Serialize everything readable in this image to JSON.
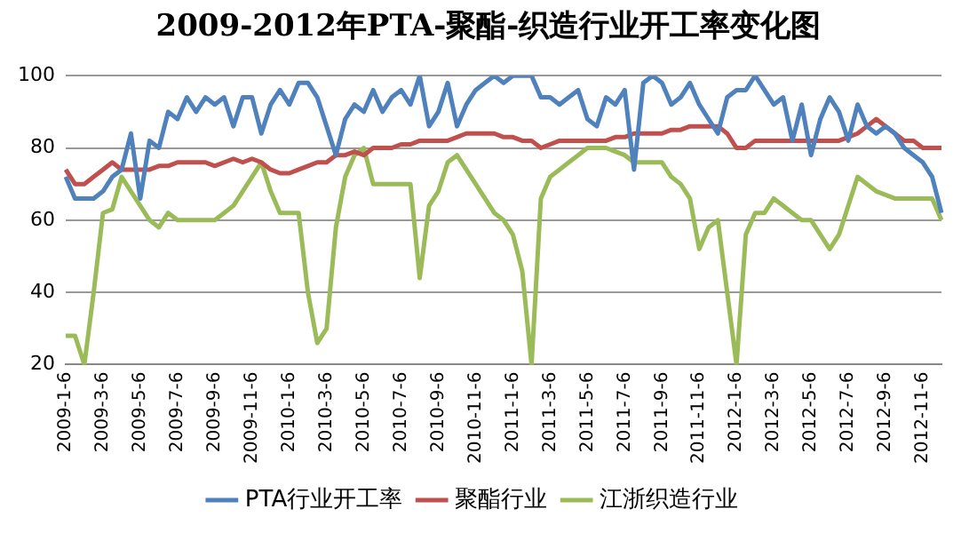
{
  "chart_data": {
    "type": "line",
    "title": "2009-2012年PTA-聚酯-织造行业开工率变化图",
    "categories": [
      "2009-1-6",
      null,
      null,
      null,
      "2009-3-6",
      null,
      null,
      null,
      "2009-5-6",
      null,
      null,
      null,
      "2009-7-6",
      null,
      null,
      null,
      "2009-9-6",
      null,
      null,
      null,
      "2009-11-6",
      null,
      null,
      null,
      "2010-1-6",
      null,
      null,
      null,
      "2010-3-6",
      null,
      null,
      null,
      "2010-5-6",
      null,
      null,
      null,
      "2010-7-6",
      null,
      null,
      null,
      "2010-9-6",
      null,
      null,
      null,
      "2010-11-6",
      null,
      null,
      null,
      "2011-1-6",
      null,
      null,
      null,
      "2011-3-6",
      null,
      null,
      null,
      "2011-5-6",
      null,
      null,
      null,
      "2011-7-6",
      null,
      null,
      null,
      "2011-9-6",
      null,
      null,
      null,
      "2011-11-6",
      null,
      null,
      null,
      "2012-1-6",
      null,
      null,
      null,
      "2012-3-6",
      null,
      null,
      null,
      "2012-5-6",
      null,
      null,
      null,
      "2012-7-6",
      null,
      null,
      null,
      "2012-9-6",
      null,
      null,
      null,
      "2012-11-6",
      null,
      null
    ],
    "series": [
      {
        "name": "PTA行业开工率",
        "color": "#4f81bd",
        "values": [
          72,
          66,
          66,
          66,
          68,
          72,
          74,
          84,
          66,
          82,
          80,
          90,
          88,
          94,
          90,
          94,
          92,
          94,
          86,
          94,
          94,
          84,
          92,
          96,
          92,
          98,
          98,
          94,
          86,
          78,
          88,
          92,
          90,
          96,
          90,
          94,
          96,
          92,
          100,
          86,
          90,
          98,
          86,
          92,
          96,
          98,
          100,
          98,
          100,
          100,
          100,
          94,
          94,
          92,
          94,
          96,
          88,
          86,
          94,
          92,
          96,
          74,
          98,
          100,
          98,
          92,
          94,
          98,
          92,
          88,
          84,
          94,
          96,
          96,
          100,
          96,
          92,
          94,
          82,
          92,
          78,
          88,
          94,
          90,
          82,
          92,
          86,
          84,
          86,
          84,
          80,
          78,
          76,
          72,
          62
        ]
      },
      {
        "name": "聚酯行业",
        "color": "#c0504d",
        "values": [
          74,
          70,
          70,
          72,
          74,
          76,
          74,
          74,
          74,
          74,
          75,
          75,
          76,
          76,
          76,
          76,
          75,
          76,
          77,
          76,
          77,
          76,
          74,
          73,
          73,
          74,
          75,
          76,
          76,
          78,
          78,
          79,
          78,
          80,
          80,
          80,
          81,
          81,
          82,
          82,
          82,
          82,
          83,
          84,
          84,
          84,
          84,
          83,
          83,
          82,
          82,
          80,
          81,
          82,
          82,
          82,
          82,
          82,
          82,
          83,
          83,
          84,
          84,
          84,
          84,
          85,
          85,
          86,
          86,
          86,
          86,
          84,
          80,
          80,
          82,
          82,
          82,
          82,
          82,
          82,
          82,
          82,
          82,
          82,
          83,
          84,
          86,
          88,
          86,
          84,
          82,
          82,
          80,
          80,
          80
        ]
      },
      {
        "name": "江浙织造行业",
        "color": "#9bbb59",
        "values": [
          28,
          28,
          20,
          40,
          62,
          63,
          72,
          68,
          64,
          60,
          58,
          62,
          60,
          60,
          60,
          60,
          60,
          62,
          64,
          68,
          72,
          76,
          68,
          62,
          62,
          62,
          40,
          26,
          30,
          58,
          72,
          78,
          80,
          70,
          70,
          70,
          70,
          70,
          44,
          64,
          68,
          76,
          78,
          74,
          70,
          66,
          62,
          60,
          56,
          46,
          20,
          66,
          72,
          74,
          76,
          78,
          80,
          80,
          80,
          79,
          78,
          76,
          76,
          76,
          76,
          72,
          70,
          66,
          52,
          58,
          60,
          40,
          20,
          56,
          62,
          62,
          66,
          64,
          62,
          60,
          60,
          56,
          52,
          56,
          64,
          72,
          70,
          68,
          67,
          66,
          66,
          66,
          66,
          66,
          60
        ]
      }
    ],
    "ylim": [
      20,
      100
    ],
    "yticks": [
      20,
      40,
      60,
      80,
      100
    ],
    "grid": "y",
    "legend": "bottom",
    "marker": "none",
    "line_style": "solid"
  }
}
